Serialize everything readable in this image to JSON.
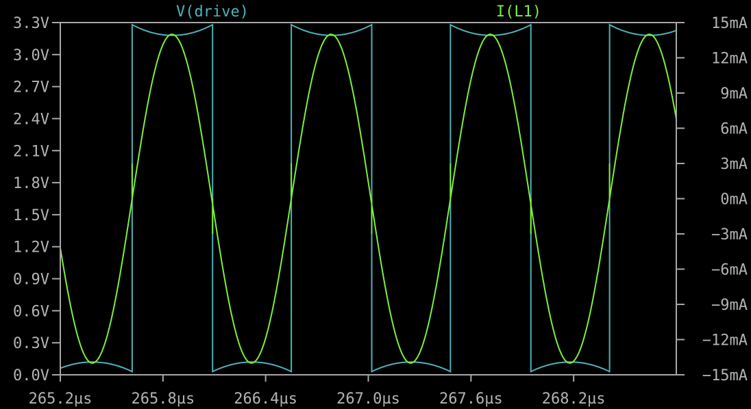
{
  "chart_data": {
    "type": "line",
    "x_unit": "µs",
    "xlim": [
      265.2,
      268.8
    ],
    "x_ticks": [
      "265.2µs",
      "265.8µs",
      "266.4µs",
      "267.0µs",
      "267.6µs",
      "268.2µs"
    ],
    "x_tick_values": [
      265.2,
      265.8,
      266.4,
      267.0,
      267.6,
      268.2
    ],
    "y_left": {
      "unit": "V",
      "ylim": [
        0.0,
        3.3
      ],
      "ticks": [
        "0.0V",
        "0.3V",
        "0.6V",
        "0.9V",
        "1.2V",
        "1.5V",
        "1.8V",
        "2.1V",
        "2.4V",
        "2.7V",
        "3.0V",
        "3.3V"
      ],
      "tick_values": [
        0.0,
        0.3,
        0.6,
        0.9,
        1.2,
        1.5,
        1.8,
        2.1,
        2.4,
        2.7,
        3.0,
        3.3
      ]
    },
    "y_right": {
      "unit": "mA",
      "ylim": [
        -15,
        15
      ],
      "ticks": [
        "−15mA",
        "−12mA",
        "−9mA",
        "−6mA",
        "−3mA",
        "0mA",
        "3mA",
        "6mA",
        "9mA",
        "12mA",
        "15mA"
      ],
      "tick_values": [
        -15,
        -12,
        -9,
        -6,
        -3,
        0,
        3,
        6,
        9,
        12,
        15
      ]
    },
    "series": [
      {
        "name": "V(drive)",
        "axis": "left",
        "color": "#4fb3b8",
        "kind": "square",
        "period_us": 0.93,
        "rise_times_us": [
          265.62,
          266.55,
          267.48,
          268.41
        ],
        "fall_times_us": [
          266.09,
          267.02,
          267.95
        ],
        "high_edge_v": 3.28,
        "high_mid_v": 3.18,
        "low_edge_v": 0.03,
        "low_mid_v": 0.12
      },
      {
        "name": "I(L1)",
        "axis": "right",
        "color": "#7cf03c",
        "kind": "sine",
        "amplitude_ma": 14.0,
        "period_us": 0.93,
        "first_zero_rising_us": 265.62,
        "spike_ma": 3.0
      }
    ],
    "grid": false,
    "legend_placement": "top"
  }
}
